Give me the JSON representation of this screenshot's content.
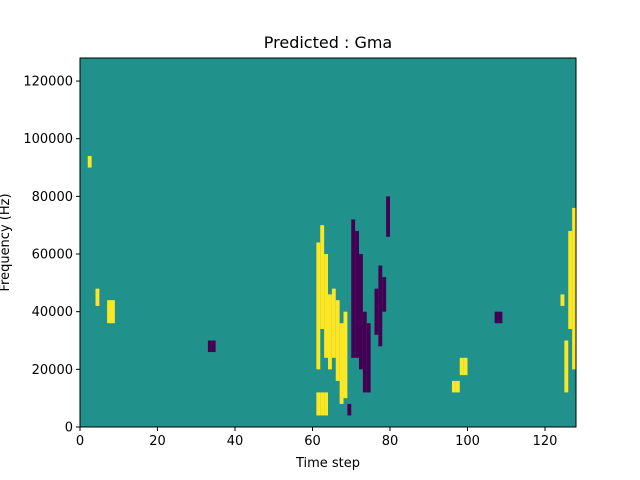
{
  "chart_data": {
    "type": "heatmap",
    "title": "Predicted : Gma",
    "xlabel": "Time step",
    "ylabel": "Frequency (Hz)",
    "xlim": [
      0,
      128
    ],
    "ylim": [
      0,
      128000
    ],
    "x_ticks": [
      0,
      20,
      40,
      60,
      80,
      100,
      120
    ],
    "y_ticks": [
      0,
      20000,
      40000,
      60000,
      80000,
      100000,
      120000
    ],
    "x_tick_labels": [
      "0",
      "20",
      "40",
      "60",
      "80",
      "100",
      "120"
    ],
    "y_tick_labels": [
      "0",
      "20000",
      "40000",
      "60000",
      "80000",
      "100000",
      "120000"
    ],
    "n_time_steps": 128,
    "n_freq_bins": 64,
    "bin_hz": 2000,
    "colors": {
      "background": "#21918c",
      "high": "#fde725",
      "low": "#440154"
    },
    "background_value": 0,
    "cells": [
      {
        "t": 61,
        "f0": 4000,
        "f1": 12000,
        "v": 1
      },
      {
        "t": 62,
        "f0": 4000,
        "f1": 12000,
        "v": 1
      },
      {
        "t": 63,
        "f0": 4000,
        "f1": 12000,
        "v": 1
      },
      {
        "t": 61,
        "f0": 20000,
        "f1": 64000,
        "v": 1
      },
      {
        "t": 62,
        "f0": 34000,
        "f1": 70000,
        "v": 1
      },
      {
        "t": 63,
        "f0": 24000,
        "f1": 60000,
        "v": 1
      },
      {
        "t": 64,
        "f0": 20000,
        "f1": 46000,
        "v": 1
      },
      {
        "t": 65,
        "f0": 24000,
        "f1": 48000,
        "v": 1
      },
      {
        "t": 66,
        "f0": 16000,
        "f1": 44000,
        "v": 1
      },
      {
        "t": 67,
        "f0": 8000,
        "f1": 36000,
        "v": 1
      },
      {
        "t": 68,
        "f0": 10000,
        "f1": 40000,
        "v": 1
      },
      {
        "t": 69,
        "f0": 4000,
        "f1": 8000,
        "v": -1
      },
      {
        "t": 70,
        "f0": 24000,
        "f1": 72000,
        "v": -1
      },
      {
        "t": 71,
        "f0": 24000,
        "f1": 68000,
        "v": -1
      },
      {
        "t": 72,
        "f0": 20000,
        "f1": 60000,
        "v": -1
      },
      {
        "t": 73,
        "f0": 12000,
        "f1": 40000,
        "v": -1
      },
      {
        "t": 74,
        "f0": 12000,
        "f1": 36000,
        "v": -1
      },
      {
        "t": 76,
        "f0": 32000,
        "f1": 48000,
        "v": -1
      },
      {
        "t": 77,
        "f0": 28000,
        "f1": 56000,
        "v": -1
      },
      {
        "t": 78,
        "f0": 40000,
        "f1": 52000,
        "v": -1
      },
      {
        "t": 79,
        "f0": 66000,
        "f1": 80000,
        "v": -1
      },
      {
        "t": 127,
        "f0": 20000,
        "f1": 76000,
        "v": 1
      },
      {
        "t": 126,
        "f0": 34000,
        "f1": 68000,
        "v": 1
      },
      {
        "t": 125,
        "f0": 12000,
        "f1": 30000,
        "v": 1
      },
      {
        "t": 124,
        "f0": 42000,
        "f1": 46000,
        "v": 1
      },
      {
        "t": 2,
        "f0": 90000,
        "f1": 94000,
        "v": 1
      },
      {
        "t": 4,
        "f0": 42000,
        "f1": 48000,
        "v": 1
      },
      {
        "t": 7,
        "f0": 36000,
        "f1": 44000,
        "v": 1
      },
      {
        "t": 8,
        "f0": 36000,
        "f1": 44000,
        "v": 1
      },
      {
        "t": 33,
        "f0": 26000,
        "f1": 30000,
        "v": -1
      },
      {
        "t": 34,
        "f0": 26000,
        "f1": 30000,
        "v": -1
      },
      {
        "t": 108,
        "f0": 40000,
        "f1": 36000,
        "v": -1
      },
      {
        "t": 107,
        "f0": 36000,
        "f1": 40000,
        "v": -1
      },
      {
        "t": 96,
        "f0": 12000,
        "f1": 16000,
        "v": 1
      },
      {
        "t": 97,
        "f0": 12000,
        "f1": 16000,
        "v": 1
      },
      {
        "t": 98,
        "f0": 18000,
        "f1": 24000,
        "v": 1
      },
      {
        "t": 99,
        "f0": 18000,
        "f1": 24000,
        "v": 1
      }
    ]
  }
}
